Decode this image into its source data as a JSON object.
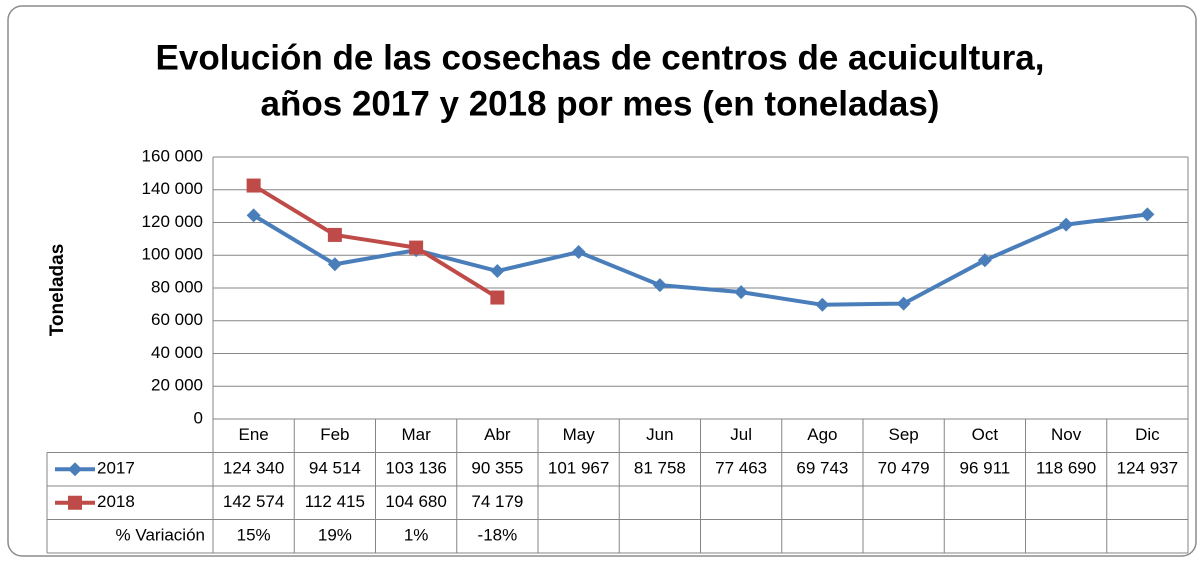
{
  "chart_data": {
    "type": "line",
    "title": [
      "Evolución de las cosechas de centros de acuicultura,",
      "años 2017 y 2018 por mes (en toneladas)"
    ],
    "y_label": "Toneladas",
    "categories": [
      "Ene",
      "Feb",
      "Mar",
      "Abr",
      "May",
      "Jun",
      "Jul",
      "Ago",
      "Sep",
      "Oct",
      "Nov",
      "Dic"
    ],
    "series": [
      {
        "name": "2017",
        "color": "#4a7ebb",
        "marker": "diamond",
        "values": [
          124340,
          94514,
          103136,
          90355,
          101967,
          81758,
          77463,
          69743,
          70479,
          96911,
          118690,
          124937
        ],
        "value_labels": [
          "124 340",
          "94 514",
          "103 136",
          "90 355",
          "101 967",
          "81 758",
          "77 463",
          "69 743",
          "70 479",
          "96 911",
          "118 690",
          "124 937"
        ]
      },
      {
        "name": "2018",
        "color": "#be4b48",
        "marker": "square",
        "values": [
          142574,
          112415,
          104680,
          74179,
          null,
          null,
          null,
          null,
          null,
          null,
          null,
          null
        ],
        "value_labels": [
          "142 574",
          "112 415",
          "104 680",
          "74 179",
          null,
          null,
          null,
          null,
          null,
          null,
          null,
          null
        ]
      }
    ],
    "variation": {
      "name": "% Variación",
      "values": [
        15,
        19,
        1,
        -18,
        null,
        null,
        null,
        null,
        null,
        null,
        null,
        null
      ],
      "value_labels": [
        "15%",
        "19%",
        "1%",
        "-18%",
        null,
        null,
        null,
        null,
        null,
        null,
        null,
        null
      ]
    },
    "ylim": [
      0,
      160000
    ],
    "yticks": [
      0,
      {
        "value": 20000,
        "label": "20 000"
      },
      {
        "value": 40000,
        "label": "40 000"
      },
      {
        "value": 60000,
        "label": "60 000"
      },
      {
        "value": 80000,
        "label": "80 000"
      },
      {
        "value": 100000,
        "label": "100 000"
      },
      {
        "value": 120000,
        "label": "120 000"
      },
      {
        "value": 140000,
        "label": "140 000"
      },
      {
        "value": 160000,
        "label": "160 000"
      }
    ],
    "grid": true
  }
}
